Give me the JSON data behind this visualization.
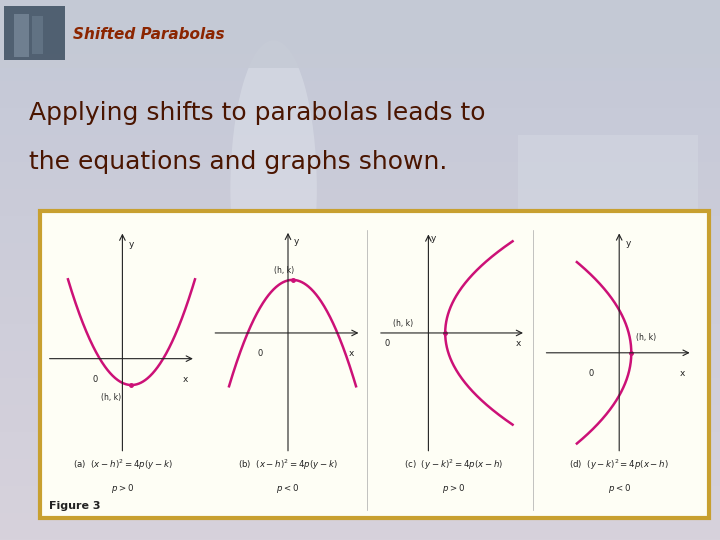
{
  "title_slide": "Shifted Parabolas",
  "title_color": "#8B2500",
  "main_text_line1": "Applying shifts to parabolas leads to",
  "main_text_line2": "the equations and graphs shown.",
  "main_text_color": "#4A1500",
  "curve_color": "#CC1177",
  "box_border_color": "#C8A030",
  "box_bg_color": "#FEFEF5",
  "figure_label": "Figure 3",
  "eq_labels": [
    [
      "(a)  $(x - h)^2 = 4p(y - k)$",
      "$p > 0$"
    ],
    [
      "(b)  $(x - h)^2 = 4p(y - k)$",
      "$p < 0$"
    ],
    [
      "(c)  $(y - k)^2 = 4p(x - h)$",
      "$p > 0$"
    ],
    [
      "(d)  $(y - k)^2 = 4p(x - h)$",
      "$p < 0$"
    ]
  ]
}
